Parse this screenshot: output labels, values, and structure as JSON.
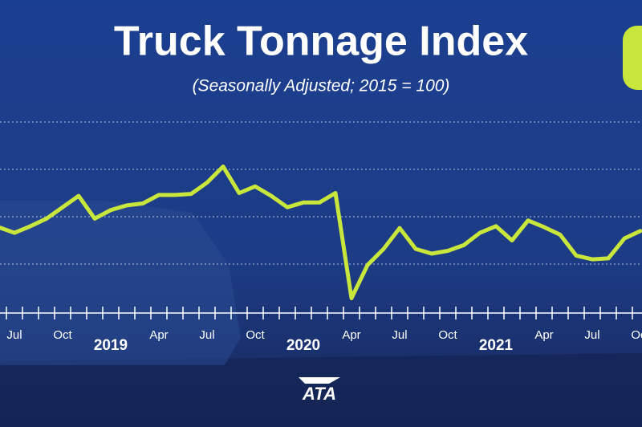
{
  "chart_data": {
    "type": "line",
    "title": "Truck Tonnage Index",
    "subtitle": "(Seasonally Adjusted; 2015 = 100)",
    "logo": "ATA",
    "categories": [
      null,
      "Jul",
      null,
      null,
      "Oct",
      null,
      null,
      "2019",
      null,
      null,
      "Apr",
      null,
      null,
      "Jul",
      null,
      null,
      "Oct",
      null,
      null,
      "2020",
      null,
      null,
      "Apr",
      null,
      null,
      "Jul",
      null,
      null,
      "Oct",
      null,
      null,
      "2021",
      null,
      null,
      "Apr",
      null,
      null,
      "Jul",
      null,
      null,
      "Oct"
    ],
    "values": [
      113.9,
      113.3,
      114.0,
      114.8,
      116.0,
      117.2,
      114.8,
      115.7,
      116.2,
      116.4,
      117.3,
      117.3,
      117.4,
      118.6,
      120.3,
      117.5,
      118.2,
      117.2,
      116.0,
      116.5,
      116.5,
      117.5,
      106.4,
      109.9,
      111.6,
      113.8,
      111.6,
      111.1,
      111.4,
      112.0,
      113.3,
      114.0,
      112.5,
      114.6,
      113.9,
      113.1,
      110.9,
      110.5,
      110.6,
      112.7,
      113.5
    ],
    "color": "#c8e63c",
    "ylim": [
      105,
      130
    ],
    "yticks": [
      110,
      115,
      120,
      125
    ],
    "grid": true
  }
}
